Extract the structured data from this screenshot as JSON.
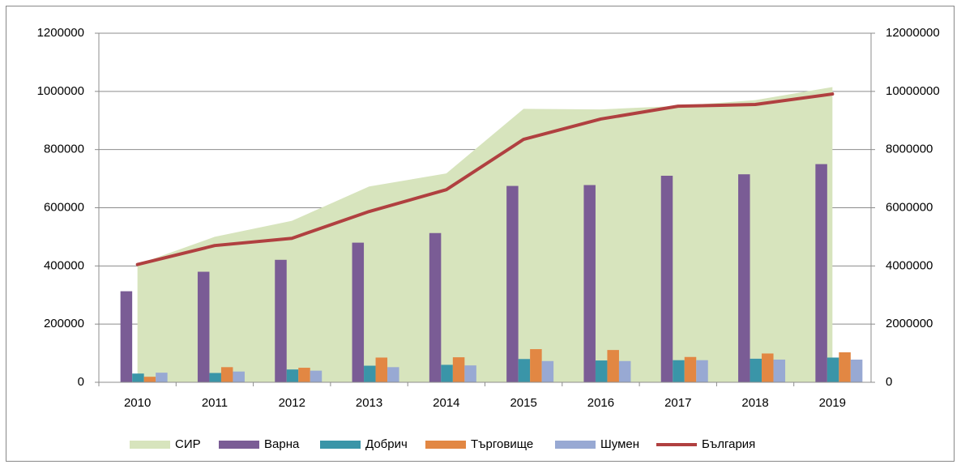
{
  "chart_data": {
    "type": "combo",
    "categories": [
      "2010",
      "2011",
      "2012",
      "2013",
      "2014",
      "2015",
      "2016",
      "2017",
      "2018",
      "2019"
    ],
    "series": [
      {
        "name": "СИР",
        "type": "area",
        "color": "#d7e4bd",
        "values": [
          405000,
          500000,
          555000,
          673000,
          718000,
          940000,
          938000,
          950000,
          970000,
          1015000
        ]
      },
      {
        "name": "Варна",
        "type": "bar",
        "color": "#7a5c95",
        "values": [
          313000,
          380000,
          421000,
          480000,
          513000,
          675000,
          678000,
          710000,
          715000,
          750000
        ]
      },
      {
        "name": "Добрич",
        "type": "bar",
        "color": "#3a95a8",
        "values": [
          30000,
          32000,
          44000,
          57000,
          60000,
          80000,
          75000,
          76000,
          81000,
          85000
        ]
      },
      {
        "name": "Търговище",
        "type": "bar",
        "color": "#e28743",
        "values": [
          19000,
          52000,
          50000,
          85000,
          86000,
          114000,
          111000,
          87000,
          99000,
          103000
        ]
      },
      {
        "name": "Шумен",
        "type": "bar",
        "color": "#98a9d3",
        "values": [
          33000,
          37000,
          40000,
          52000,
          58000,
          73000,
          73000,
          76000,
          78000,
          78000
        ]
      },
      {
        "name": "България",
        "type": "line",
        "axis": "y2",
        "color": "#b04040",
        "values": [
          4050000,
          4700000,
          4950000,
          5870000,
          6620000,
          8350000,
          9050000,
          9490000,
          9550000,
          9910000
        ]
      }
    ],
    "ylim": [
      0,
      1200000
    ],
    "yticks": [
      0,
      200000,
      400000,
      600000,
      800000,
      1000000,
      1200000
    ],
    "y2lim": [
      0,
      12000000
    ],
    "y2ticks": [
      0,
      2000000,
      4000000,
      6000000,
      8000000,
      10000000,
      12000000
    ],
    "grid": true,
    "legend": "bottom"
  }
}
